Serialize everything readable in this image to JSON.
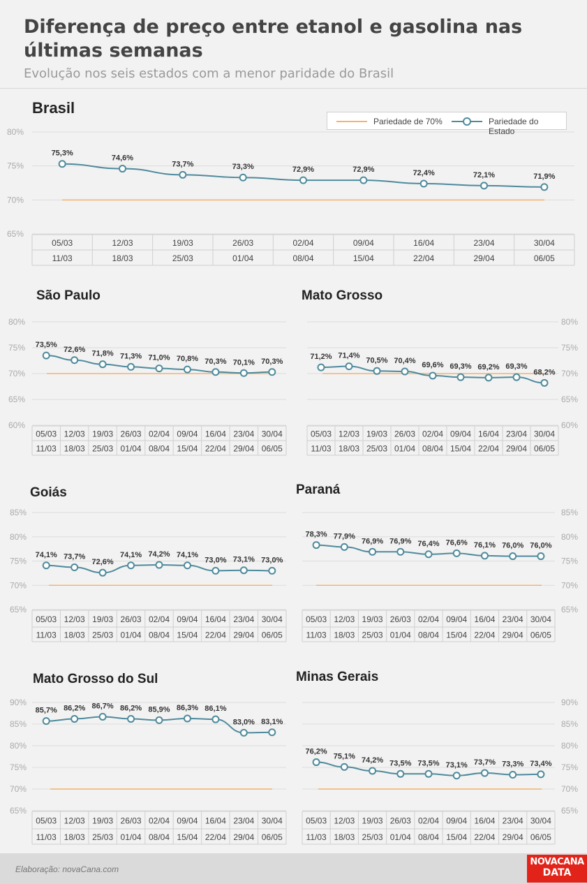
{
  "title": "Diferença de preço entre etanol e gasolina nas últimas semanas",
  "subtitle": "Evolução nos seis estados com a menor paridade do Brasil",
  "legend": {
    "threshold_label": "Pariedade de 70%",
    "series_label": "Pariedade do Estado"
  },
  "footer": {
    "credit": "Elaboração: novaCana.com",
    "logo_line1": "NOVACANA",
    "logo_line2": "DATA"
  },
  "colors": {
    "series": "#4e8a9c",
    "threshold": "#f5b26b"
  },
  "chart_data": [
    {
      "type": "line",
      "title": "Brasil",
      "categories_top": [
        "05/03",
        "12/03",
        "19/03",
        "26/03",
        "02/04",
        "09/04",
        "16/04",
        "23/04",
        "30/04"
      ],
      "categories_bottom": [
        "11/03",
        "18/03",
        "25/03",
        "01/04",
        "08/04",
        "15/04",
        "22/04",
        "29/04",
        "06/05"
      ],
      "values": [
        75.3,
        74.6,
        73.7,
        73.3,
        72.9,
        72.9,
        72.4,
        72.1,
        71.9
      ],
      "value_labels": [
        "75,3%",
        "74,6%",
        "73,7%",
        "73,3%",
        "72,9%",
        "72,9%",
        "72,4%",
        "72,1%",
        "71,9%"
      ],
      "threshold": 70,
      "ylim": [
        65,
        80
      ],
      "yticks": [
        65,
        70,
        75,
        80
      ],
      "ytick_labels": [
        "65%",
        "70%",
        "75%",
        "80%"
      ],
      "yaxis_side": "left"
    },
    {
      "type": "line",
      "title": "São Paulo",
      "categories_top": [
        "05/03",
        "12/03",
        "19/03",
        "26/03",
        "02/04",
        "09/04",
        "16/04",
        "23/04",
        "30/04"
      ],
      "categories_bottom": [
        "11/03",
        "18/03",
        "25/03",
        "01/04",
        "08/04",
        "15/04",
        "22/04",
        "29/04",
        "06/05"
      ],
      "values": [
        73.5,
        72.6,
        71.8,
        71.3,
        71.0,
        70.8,
        70.3,
        70.1,
        70.3
      ],
      "value_labels": [
        "73,5%",
        "72,6%",
        "71,8%",
        "71,3%",
        "71,0%",
        "70,8%",
        "70,3%",
        "70,1%",
        "70,3%"
      ],
      "threshold": 70,
      "ylim": [
        60,
        80
      ],
      "yticks": [
        60,
        65,
        70,
        75,
        80
      ],
      "ytick_labels": [
        "60%",
        "65%",
        "70%",
        "75%",
        "80%"
      ],
      "yaxis_side": "left"
    },
    {
      "type": "line",
      "title": "Mato Grosso",
      "categories_top": [
        "05/03",
        "12/03",
        "19/03",
        "26/03",
        "02/04",
        "09/04",
        "16/04",
        "23/04",
        "30/04"
      ],
      "categories_bottom": [
        "11/03",
        "18/03",
        "25/03",
        "01/04",
        "08/04",
        "15/04",
        "22/04",
        "29/04",
        "06/05"
      ],
      "values": [
        71.2,
        71.4,
        70.5,
        70.4,
        69.6,
        69.3,
        69.2,
        69.3,
        68.2
      ],
      "value_labels": [
        "71,2%",
        "71,4%",
        "70,5%",
        "70,4%",
        "69,6%",
        "69,3%",
        "69,2%",
        "69,3%",
        "68,2%"
      ],
      "threshold": 70,
      "ylim": [
        60,
        80
      ],
      "yticks": [
        60,
        65,
        70,
        75,
        80
      ],
      "ytick_labels": [
        "60%",
        "65%",
        "70%",
        "75%",
        "80%"
      ],
      "yaxis_side": "right"
    },
    {
      "type": "line",
      "title": "Goiás",
      "categories_top": [
        "05/03",
        "12/03",
        "19/03",
        "26/03",
        "02/04",
        "09/04",
        "16/04",
        "23/04",
        "30/04"
      ],
      "categories_bottom": [
        "11/03",
        "18/03",
        "25/03",
        "01/04",
        "08/04",
        "15/04",
        "22/04",
        "29/04",
        "06/05"
      ],
      "values": [
        74.1,
        73.7,
        72.6,
        74.1,
        74.2,
        74.1,
        73.0,
        73.1,
        73.0
      ],
      "value_labels": [
        "74,1%",
        "73,7%",
        "72,6%",
        "74,1%",
        "74,2%",
        "74,1%",
        "73,0%",
        "73,1%",
        "73,0%"
      ],
      "threshold": 70,
      "ylim": [
        65,
        85
      ],
      "yticks": [
        65,
        70,
        75,
        80,
        85
      ],
      "ytick_labels": [
        "65%",
        "70%",
        "75%",
        "80%",
        "85%"
      ],
      "yaxis_side": "left"
    },
    {
      "type": "line",
      "title": "Paraná",
      "categories_top": [
        "05/03",
        "12/03",
        "19/03",
        "26/03",
        "02/04",
        "09/04",
        "16/04",
        "23/04",
        "30/04"
      ],
      "categories_bottom": [
        "11/03",
        "18/03",
        "25/03",
        "01/04",
        "08/04",
        "15/04",
        "22/04",
        "29/04",
        "06/05"
      ],
      "values": [
        78.3,
        77.9,
        76.9,
        76.9,
        76.4,
        76.6,
        76.1,
        76.0,
        76.0
      ],
      "value_labels": [
        "78,3%",
        "77,9%",
        "76,9%",
        "76,9%",
        "76,4%",
        "76,6%",
        "76,1%",
        "76,0%",
        "76,0%"
      ],
      "threshold": 70,
      "ylim": [
        65,
        85
      ],
      "yticks": [
        65,
        70,
        75,
        80,
        85
      ],
      "ytick_labels": [
        "65%",
        "70%",
        "75%",
        "80%",
        "85%"
      ],
      "yaxis_side": "right"
    },
    {
      "type": "line",
      "title": "Mato Grosso do Sul",
      "categories_top": [
        "05/03",
        "12/03",
        "19/03",
        "26/03",
        "02/04",
        "09/04",
        "16/04",
        "23/04",
        "30/04"
      ],
      "categories_bottom": [
        "11/03",
        "18/03",
        "25/03",
        "01/04",
        "08/04",
        "15/04",
        "22/04",
        "29/04",
        "06/05"
      ],
      "values": [
        85.7,
        86.2,
        86.7,
        86.2,
        85.9,
        86.3,
        86.1,
        83.0,
        83.1
      ],
      "value_labels": [
        "85,7%",
        "86,2%",
        "86,7%",
        "86,2%",
        "85,9%",
        "86,3%",
        "86,1%",
        "83,0%",
        "83,1%"
      ],
      "threshold": 70,
      "ylim": [
        65,
        90
      ],
      "yticks": [
        65,
        70,
        75,
        80,
        85,
        90
      ],
      "ytick_labels": [
        "65%",
        "70%",
        "75%",
        "80%",
        "85%",
        "90%"
      ],
      "yaxis_side": "left"
    },
    {
      "type": "line",
      "title": "Minas Gerais",
      "categories_top": [
        "05/03",
        "12/03",
        "19/03",
        "26/03",
        "02/04",
        "09/04",
        "16/04",
        "23/04",
        "30/04"
      ],
      "categories_bottom": [
        "11/03",
        "18/03",
        "25/03",
        "01/04",
        "08/04",
        "15/04",
        "22/04",
        "29/04",
        "06/05"
      ],
      "values": [
        76.2,
        75.1,
        74.2,
        73.5,
        73.5,
        73.1,
        73.7,
        73.3,
        73.4
      ],
      "value_labels": [
        "76,2%",
        "75,1%",
        "74,2%",
        "73,5%",
        "73,5%",
        "73,1%",
        "73,7%",
        "73,3%",
        "73,4%"
      ],
      "threshold": 70,
      "ylim": [
        65,
        90
      ],
      "yticks": [
        65,
        70,
        75,
        80,
        85,
        90
      ],
      "ytick_labels": [
        "65%",
        "70%",
        "75%",
        "80%",
        "85%",
        "90%"
      ],
      "yaxis_side": "right"
    }
  ]
}
